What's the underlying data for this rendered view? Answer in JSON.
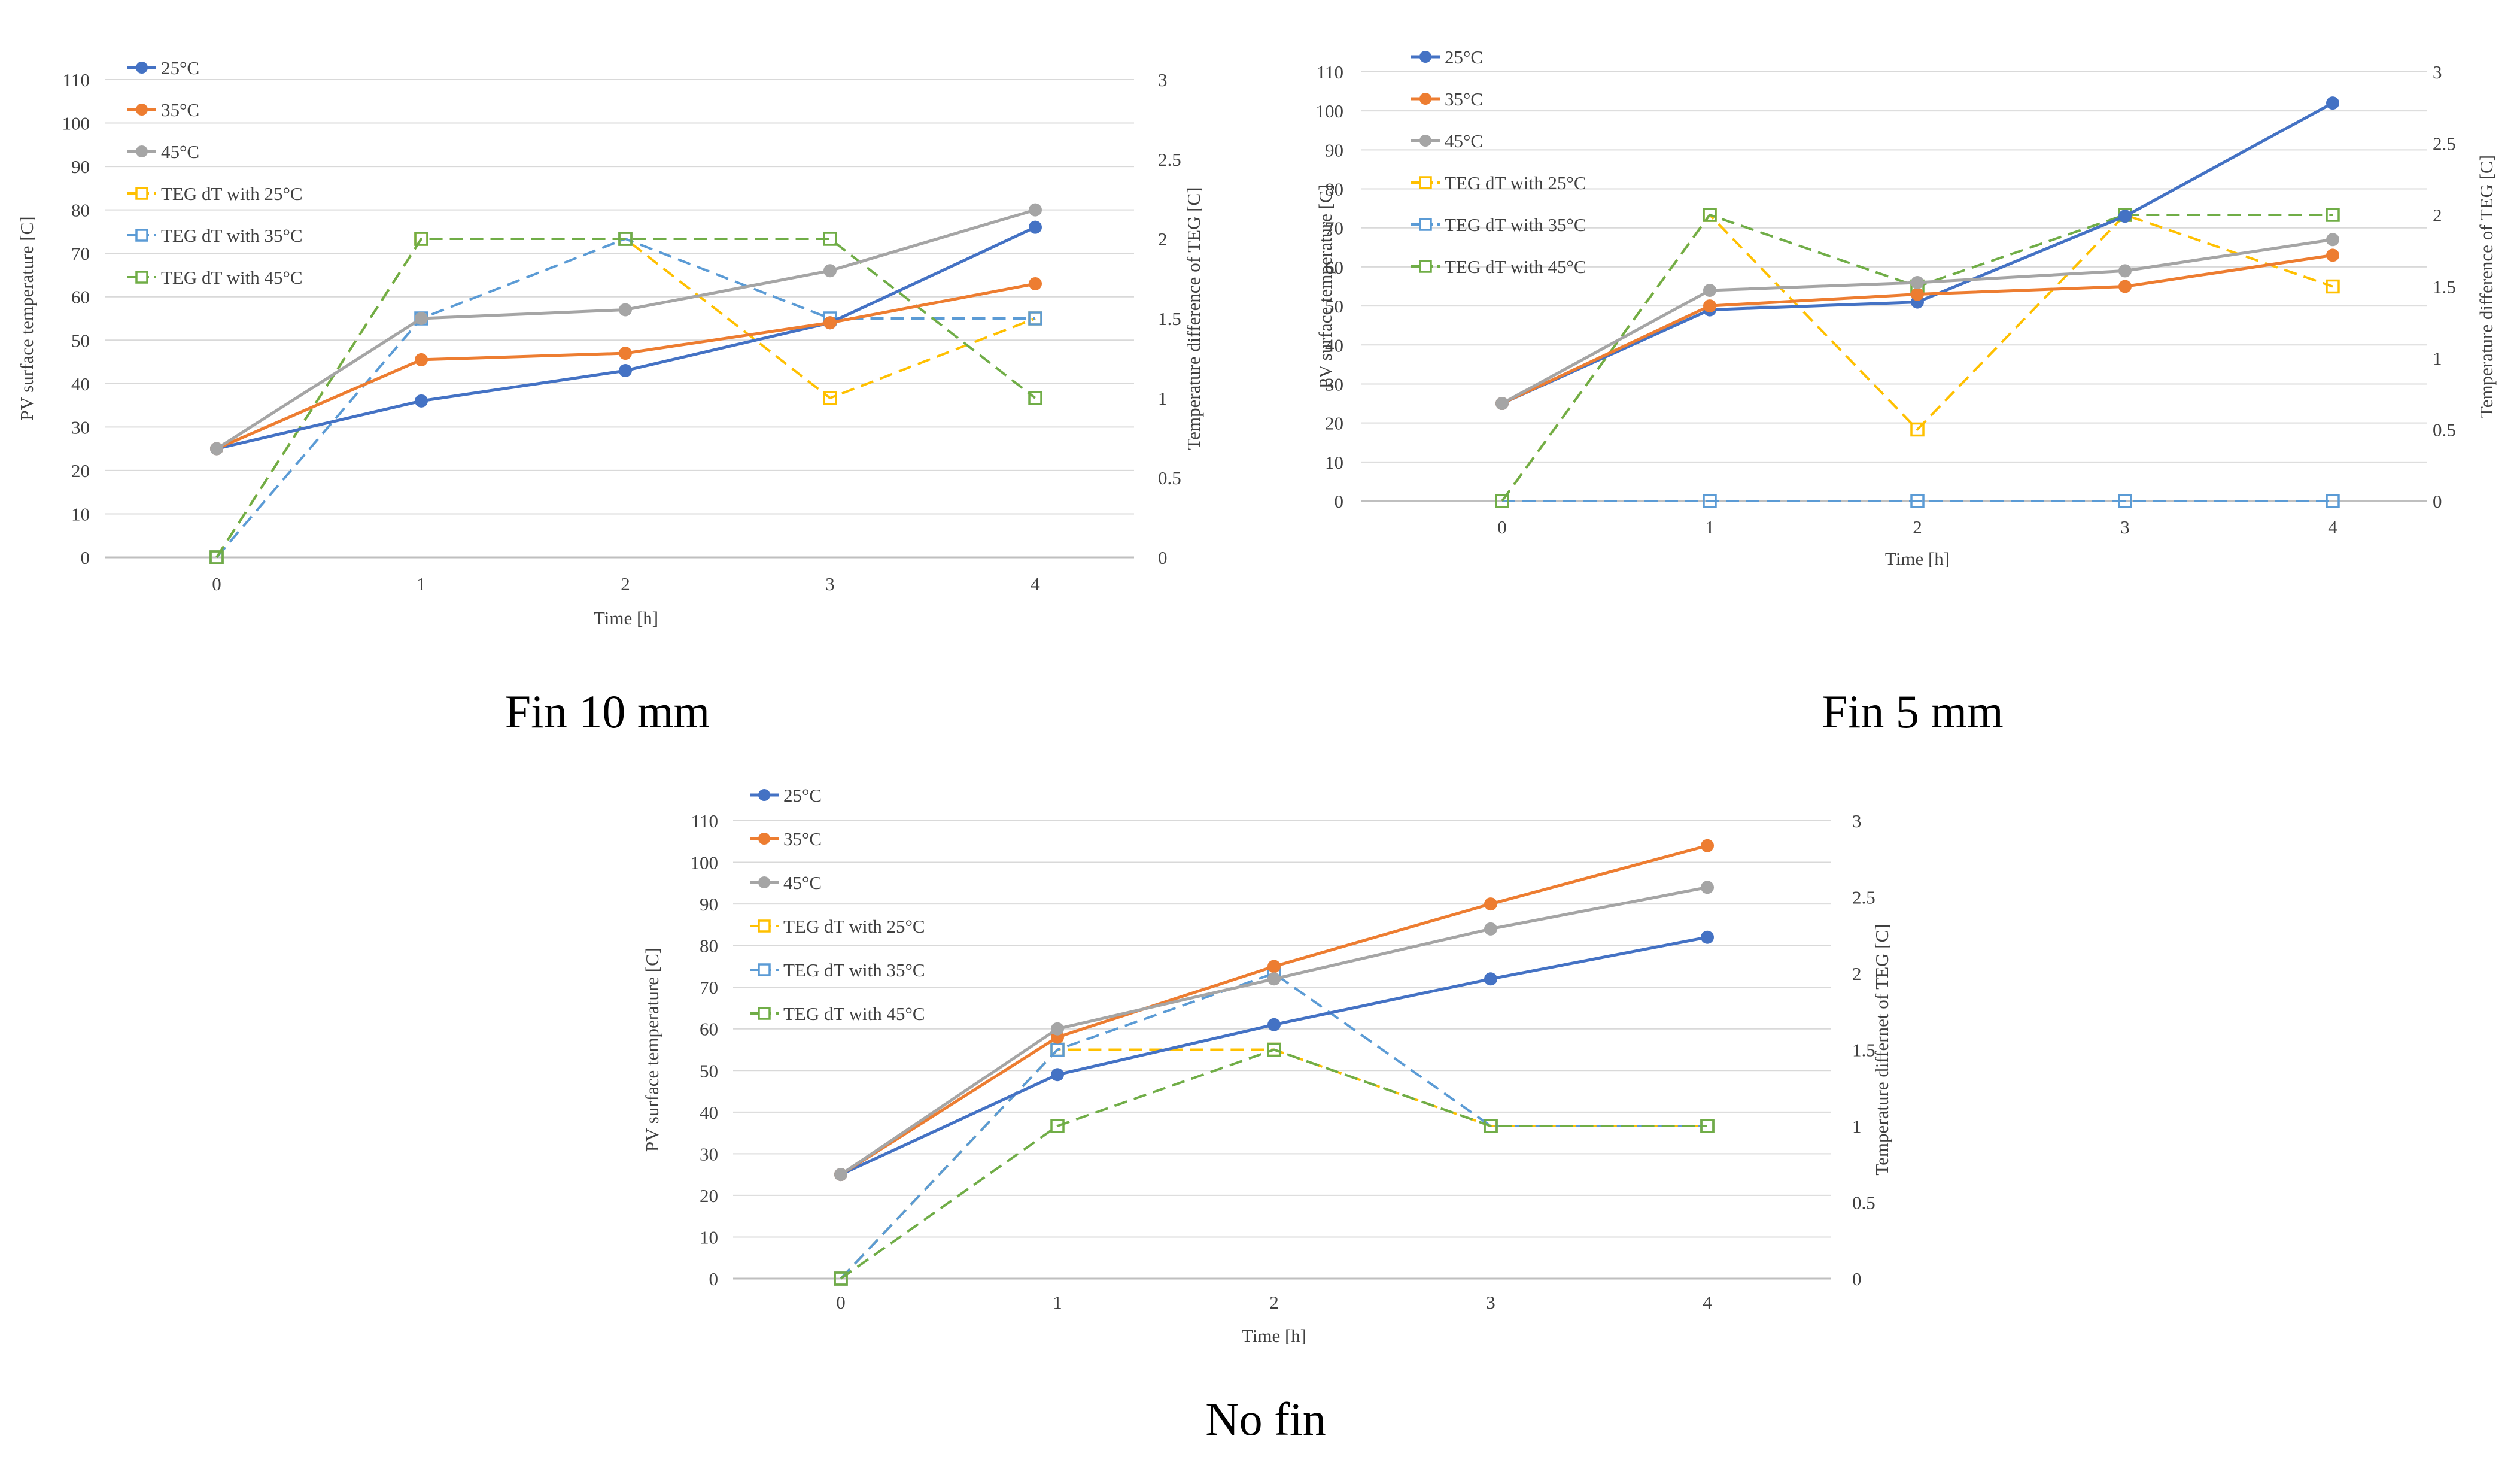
{
  "figure": {
    "colors": {
      "s25": "#4472C4",
      "s35": "#ED7D31",
      "s45": "#A5A5A5",
      "teg25": "#FFC000",
      "teg35": "#5B9BD5",
      "teg45": "#70AD47",
      "grid": "#D9D9D9",
      "axis": "#BFBFBF",
      "text": "#404040"
    }
  },
  "chart_data": [
    {
      "type": "line",
      "caption": "Fin 10 mm",
      "title": "",
      "xlabel": "Time [h]",
      "ylabel": "PV surface temperature [C]",
      "y2label": "Temperature difference of TEG [C]",
      "x": [
        0,
        1,
        2,
        3,
        4
      ],
      "ylim": [
        0,
        110
      ],
      "yticks": [
        0,
        10,
        20,
        30,
        40,
        50,
        60,
        70,
        80,
        90,
        100,
        110
      ],
      "y2lim": [
        0,
        3
      ],
      "y2ticks": [
        0,
        0.5,
        1,
        1.5,
        2,
        2.5,
        3
      ],
      "legend_position": "top-left",
      "series": [
        {
          "key": "s25",
          "name": "25°C",
          "axis": "left",
          "style": "solid",
          "marker": "circle",
          "values": [
            25,
            36,
            43,
            54,
            76
          ]
        },
        {
          "key": "s35",
          "name": "35°C",
          "axis": "left",
          "style": "solid",
          "marker": "circle",
          "values": [
            25,
            45.5,
            47,
            54,
            63
          ]
        },
        {
          "key": "s45",
          "name": "45°C",
          "axis": "left",
          "style": "solid",
          "marker": "circle",
          "values": [
            25,
            55,
            57,
            66,
            80
          ]
        },
        {
          "key": "teg25",
          "name": "TEG dT with 25°C",
          "axis": "right",
          "style": "dashed",
          "marker": "square",
          "values": [
            0,
            2,
            2,
            1,
            1.5
          ]
        },
        {
          "key": "teg35",
          "name": "TEG dT with 35°C",
          "axis": "right",
          "style": "dashed",
          "marker": "square",
          "values": [
            0,
            1.5,
            2,
            1.5,
            1.5
          ]
        },
        {
          "key": "teg45",
          "name": "TEG dT with 45°C",
          "axis": "right",
          "style": "dashed",
          "marker": "square",
          "values": [
            0,
            2,
            2,
            2,
            1
          ]
        }
      ]
    },
    {
      "type": "line",
      "caption": "Fin 5 mm",
      "title": "",
      "xlabel": "Time [h]",
      "ylabel": "PV surface temperature [C]",
      "y2label": "Temperature difference of TEG [C]",
      "x": [
        0,
        1,
        2,
        3,
        4
      ],
      "ylim": [
        0,
        110
      ],
      "yticks": [
        0,
        10,
        20,
        30,
        40,
        50,
        60,
        70,
        80,
        90,
        100,
        110
      ],
      "y2lim": [
        0,
        3
      ],
      "y2ticks": [
        0,
        0.5,
        1,
        1.5,
        2,
        2.5,
        3
      ],
      "legend_position": "top-left",
      "series": [
        {
          "key": "s25",
          "name": "25°C",
          "axis": "left",
          "style": "solid",
          "marker": "circle",
          "values": [
            25,
            49,
            51,
            73,
            102
          ]
        },
        {
          "key": "s35",
          "name": "35°C",
          "axis": "left",
          "style": "solid",
          "marker": "circle",
          "values": [
            25,
            50,
            53,
            55,
            63
          ]
        },
        {
          "key": "s45",
          "name": "45°C",
          "axis": "left",
          "style": "solid",
          "marker": "circle",
          "values": [
            25,
            54,
            56,
            59,
            67
          ]
        },
        {
          "key": "teg25",
          "name": "TEG dT with 25°C",
          "axis": "right",
          "style": "dashed",
          "marker": "square",
          "values": [
            0,
            2,
            0.5,
            2,
            1.5
          ]
        },
        {
          "key": "teg35",
          "name": "TEG dT with 35°C",
          "axis": "right",
          "style": "dashed",
          "marker": "square",
          "values": [
            0,
            0,
            0,
            0,
            0
          ]
        },
        {
          "key": "teg45",
          "name": "TEG dT with 45°C",
          "axis": "right",
          "style": "dashed",
          "marker": "square",
          "values": [
            0,
            2,
            1.5,
            2,
            2
          ]
        }
      ]
    },
    {
      "type": "line",
      "caption": "No fin",
      "title": "",
      "xlabel": "Time [h]",
      "ylabel": "PV surface temperature [C]",
      "y2label": "Temperature differnet of TEG [C]",
      "x": [
        0,
        1,
        2,
        3,
        4
      ],
      "ylim": [
        0,
        110
      ],
      "yticks": [
        0,
        10,
        20,
        30,
        40,
        50,
        60,
        70,
        80,
        90,
        100,
        110
      ],
      "y2lim": [
        0,
        3
      ],
      "y2ticks": [
        0,
        0.5,
        1,
        1.5,
        2,
        2.5,
        3
      ],
      "legend_position": "top-left",
      "series": [
        {
          "key": "s25",
          "name": "25°C",
          "axis": "left",
          "style": "solid",
          "marker": "circle",
          "values": [
            25,
            49,
            61,
            72,
            82
          ]
        },
        {
          "key": "s35",
          "name": "35°C",
          "axis": "left",
          "style": "solid",
          "marker": "circle",
          "values": [
            25,
            58,
            75,
            90,
            104
          ]
        },
        {
          "key": "s45",
          "name": "45°C",
          "axis": "left",
          "style": "solid",
          "marker": "circle",
          "values": [
            25,
            60,
            72,
            84,
            94
          ]
        },
        {
          "key": "teg25",
          "name": "TEG dT with 25°C",
          "axis": "right",
          "style": "dashed",
          "marker": "square",
          "values": [
            0,
            1.5,
            1.5,
            1,
            1
          ]
        },
        {
          "key": "teg35",
          "name": "TEG dT with 35°C",
          "axis": "right",
          "style": "dashed",
          "marker": "square",
          "values": [
            0,
            1.5,
            2,
            1,
            1
          ]
        },
        {
          "key": "teg45",
          "name": "TEG dT with 45°C",
          "axis": "right",
          "style": "dashed",
          "marker": "square",
          "values": [
            0,
            1,
            1.5,
            1,
            1
          ]
        }
      ]
    }
  ]
}
